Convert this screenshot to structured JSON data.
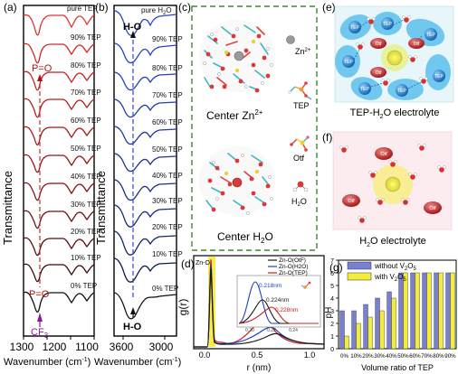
{
  "panel_a": {
    "letter": "(a)",
    "ylabel": "Transmittance",
    "xlabel": "Wavenumber (cm",
    "xlabel_sup": "-1",
    "xlabel_close": ")",
    "x_ticks": [
      "1300",
      "1200",
      "1100"
    ],
    "trace_labels": [
      "pure TEP",
      "90% TEP",
      "80% TEP",
      "70% TEP",
      "60% TEP",
      "50% TEP",
      "40% TEP",
      "30% TEP",
      "20% TEP",
      "10% TEP",
      "0% TEP"
    ],
    "anno_pO_top": "P=O",
    "anno_pO_bottom": "P=O",
    "anno_cf3": "CF",
    "anno_cf3_sub": "3"
  },
  "panel_b": {
    "letter": "(b)",
    "ylabel": "Transmittance",
    "xlabel": "Wavenumber (cm",
    "xlabel_sup": "-1",
    "xlabel_close": ")",
    "x_ticks": [
      "3600",
      "3000"
    ],
    "trace_labels": [
      "pure H",
      "90% TEP",
      "80% TEP",
      "70% TEP",
      "60% TEP",
      "50% TEP",
      "40% TEP",
      "30% TEP",
      "20% TEP",
      "10% TEP",
      "0% TEP"
    ],
    "trace_label_top_tail": "O",
    "anno_top": "H-O",
    "anno_bottom": "H-O"
  },
  "panel_c": {
    "letter": "(c)",
    "label_top": "Center Zn",
    "label_top_sup": "2+",
    "label_bottom": "Center H",
    "label_bottom_sub": "2",
    "label_bottom_tail": "O",
    "legend_zn": "Zn",
    "legend_zn_sup": "2+",
    "legend_tep": "TEP",
    "legend_otf": "Otf",
    "legend_h2o": "H",
    "legend_h2o_sub": "2",
    "legend_h2o_tail": "O"
  },
  "panel_d": {
    "letter": "(d)",
    "corner_label": "Zn-O",
    "ylabel": "g(r)",
    "xlabel": "r (nm)",
    "x_ticks": [
      "0.0",
      "0.5",
      "1.0"
    ],
    "legend": [
      "Zn-O(OtF)",
      "Zn-O(H2O)",
      "Zn-O(TEP)"
    ],
    "legend_colors": [
      "#1a1a1a",
      "#1f3fbf",
      "#c62020"
    ],
    "peak_labels": [
      "0.218nm",
      "0.224nm",
      "0.228nm"
    ],
    "inset_ticks": [
      "0.20",
      "0.22",
      "0.24"
    ]
  },
  "panel_e": {
    "letter": "(e)",
    "caption": "TEP-H",
    "caption_sub": "2",
    "caption_tail": "O electrolyte",
    "tep_label": "TEP",
    "otf_label": "Otf"
  },
  "panel_f": {
    "letter": "(f)",
    "caption": "H",
    "caption_sub": "2",
    "caption_tail": "O electrolyte",
    "otf_label": "Otf"
  },
  "panel_g": {
    "letter": "(g)",
    "ylabel": "pH",
    "xlabel": "Volume ratio of TEP",
    "legend": [
      {
        "label": "without V",
        "sub": "2",
        "mid": "O",
        "sub2": "5"
      },
      {
        "label": "with V",
        "sub": "2",
        "mid": "O",
        "sub2": "5"
      }
    ],
    "colors": {
      "without": "#7b7fd0",
      "with": "#f2ec3c"
    }
  },
  "chart_data": [
    {
      "type": "bar",
      "panel": "g",
      "ylabel": "pH",
      "xlabel": "Volume ratio of TEP",
      "categories": [
        "0%",
        "10%",
        "20%",
        "30%",
        "40%",
        "50%",
        "60%",
        "70%",
        "80%",
        "90%"
      ],
      "ylim": [
        0,
        7
      ],
      "y_ticks": [
        0,
        1,
        2,
        3,
        4,
        5,
        6,
        7
      ],
      "series": [
        {
          "name": "without V2O5",
          "values": [
            3,
            3,
            3.5,
            4,
            4.5,
            6,
            6,
            6,
            6,
            6
          ]
        },
        {
          "name": "with V2O5",
          "values": [
            1,
            2,
            2.5,
            3,
            4,
            6,
            6,
            6,
            6,
            6
          ]
        }
      ]
    }
  ]
}
